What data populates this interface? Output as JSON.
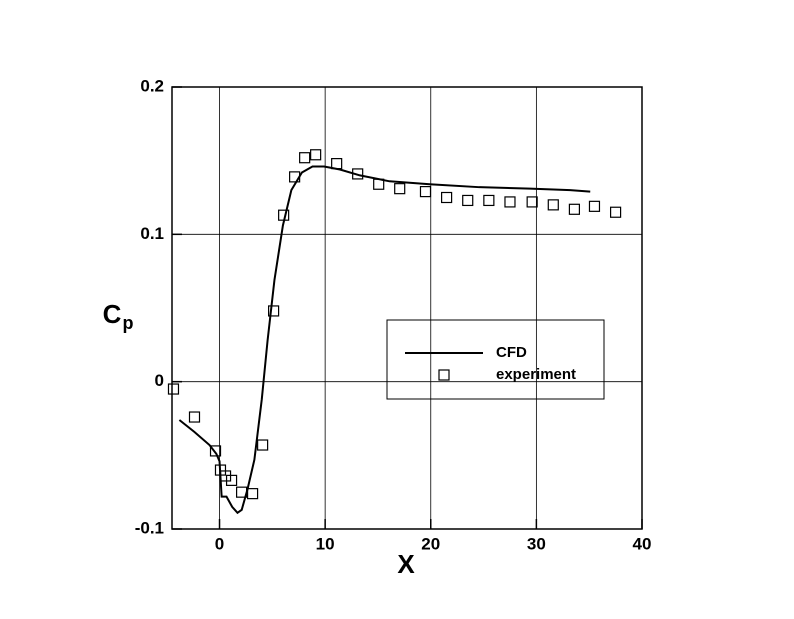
{
  "chart_data": {
    "type": "line_scatter",
    "x_label": "X",
    "y_label": "C",
    "y_label_subscript": "p",
    "xlim": [
      -4.5,
      40
    ],
    "ylim": [
      -0.1,
      0.2
    ],
    "xticks": [
      0,
      10,
      20,
      30,
      40
    ],
    "yticks": [
      -0.1,
      0,
      0.1,
      0.2
    ],
    "grid": true,
    "series": [
      {
        "name": "CFD",
        "kind": "line",
        "color": "#000000",
        "x": [
          -3.8,
          -2.4,
          -0.95,
          -0.3,
          0,
          0.2,
          0.66,
          1.2,
          1.7,
          2.1,
          2.65,
          3.3,
          4.0,
          4.55,
          5.2,
          6.0,
          6.8,
          7.8,
          8.8,
          9.9,
          11.4,
          13.3,
          16.1,
          19.9,
          24.6,
          29.4,
          33.2,
          35.1
        ],
        "values": [
          -0.026,
          -0.034,
          -0.043,
          -0.049,
          -0.054,
          -0.078,
          -0.078,
          -0.085,
          -0.089,
          -0.087,
          -0.073,
          -0.053,
          -0.012,
          0.028,
          0.069,
          0.106,
          0.13,
          0.142,
          0.146,
          0.146,
          0.144,
          0.14,
          0.136,
          0.134,
          0.132,
          0.131,
          0.13,
          0.129
        ]
      },
      {
        "name": "experiment",
        "kind": "scatter",
        "color": "#000000",
        "x": [
          -4.36,
          -2.37,
          -0.38,
          0.09,
          0.57,
          1.14,
          2.09,
          3.13,
          4.08,
          5.12,
          6.07,
          7.11,
          8.06,
          9.1,
          11.09,
          13.08,
          15.07,
          17.06,
          19.5,
          21.5,
          23.5,
          25.5,
          27.5,
          29.6,
          31.6,
          33.6,
          35.5,
          37.5
        ],
        "values": [
          -0.005,
          -0.024,
          -0.047,
          -0.06,
          -0.064,
          -0.067,
          -0.075,
          -0.076,
          -0.043,
          0.048,
          0.113,
          0.139,
          0.152,
          0.154,
          0.148,
          0.141,
          0.134,
          0.131,
          0.129,
          0.125,
          0.123,
          0.123,
          0.122,
          0.122,
          0.12,
          0.117,
          0.119,
          0.115
        ]
      }
    ]
  }
}
